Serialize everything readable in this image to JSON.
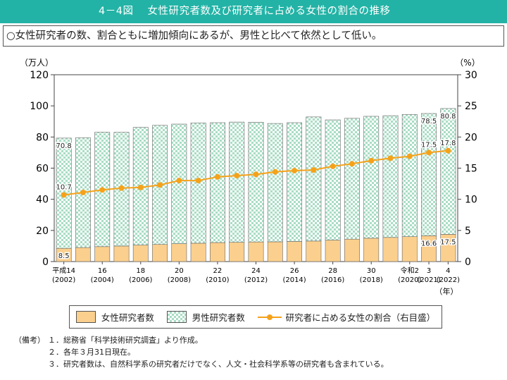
{
  "header": {
    "figure_number": "4－4図",
    "title": "女性研究者数及び研究者に占める女性の割合の推移"
  },
  "summary": "○女性研究者の数、割合ともに増加傾向にあるが、男性と比べて依然として低い。",
  "chart_data": {
    "type": "bar",
    "stacked": true,
    "left_axis_unit": "（万人）",
    "right_axis_unit": "（%）",
    "x_axis_unit": "（年）",
    "ylim": [
      0,
      120
    ],
    "y2lim": [
      0,
      30
    ],
    "left_ticks": [
      "0",
      "20",
      "40",
      "60",
      "80",
      "100",
      "120"
    ],
    "right_ticks": [
      "0",
      "5",
      "10",
      "15",
      "20",
      "25",
      "30"
    ],
    "tick_labels": [
      {
        "index": 0,
        "line1": "平成14",
        "line2": "(2002)"
      },
      {
        "index": 2,
        "line1": "16",
        "line2": "(2004)"
      },
      {
        "index": 4,
        "line1": "18",
        "line2": "(2006)"
      },
      {
        "index": 6,
        "line1": "20",
        "line2": "(2008)"
      },
      {
        "index": 8,
        "line1": "22",
        "line2": "(2010)"
      },
      {
        "index": 10,
        "line1": "24",
        "line2": "(2012)"
      },
      {
        "index": 12,
        "line1": "26",
        "line2": "(2014)"
      },
      {
        "index": 14,
        "line1": "28",
        "line2": "(2016)"
      },
      {
        "index": 16,
        "line1": "30",
        "line2": "(2018)"
      },
      {
        "index": 18,
        "line1": "令和2",
        "line2": "(2020)"
      },
      {
        "index": 19,
        "line1": "3",
        "line2": "(2021)"
      },
      {
        "index": 20,
        "line1": "4",
        "line2": "(2022)"
      }
    ],
    "categories": [
      "2002",
      "2003",
      "2004",
      "2005",
      "2006",
      "2007",
      "2008",
      "2009",
      "2010",
      "2011",
      "2012",
      "2013",
      "2014",
      "2015",
      "2016",
      "2017",
      "2018",
      "2019",
      "2020",
      "2021",
      "2022"
    ],
    "series": [
      {
        "name": "女性研究者数",
        "axis": "left",
        "values": [
          8.5,
          9.0,
          9.6,
          10.0,
          10.6,
          11.0,
          11.5,
          11.8,
          12.2,
          12.4,
          12.6,
          12.7,
          12.9,
          13.2,
          13.8,
          14.4,
          15.0,
          15.5,
          16.0,
          16.6,
          17.5
        ]
      },
      {
        "name": "男性研究者数",
        "axis": "left",
        "values": [
          70.8,
          70.5,
          73.5,
          73.0,
          75.6,
          76.5,
          76.8,
          77.2,
          77.0,
          77.2,
          76.9,
          76.0,
          76.3,
          79.7,
          77.2,
          77.6,
          78.3,
          78.2,
          78.5,
          78.5,
          80.8
        ]
      },
      {
        "name": "研究者に占める女性の割合（右目盛）",
        "axis": "right",
        "values": [
          10.7,
          11.1,
          11.5,
          11.8,
          11.9,
          12.3,
          13.0,
          13.0,
          13.6,
          13.8,
          14.0,
          14.4,
          14.6,
          14.7,
          15.3,
          15.7,
          16.2,
          16.6,
          16.9,
          17.5,
          17.8
        ]
      }
    ],
    "data_labels": [
      {
        "series": 0,
        "index": 0,
        "text": "8.5"
      },
      {
        "series": 1,
        "index": 0,
        "text": "70.8"
      },
      {
        "series": 2,
        "index": 0,
        "text": "10.7"
      },
      {
        "series": 0,
        "index": 19,
        "text": "16.6"
      },
      {
        "series": 1,
        "index": 19,
        "text": "78.5"
      },
      {
        "series": 2,
        "index": 19,
        "text": "17.5"
      },
      {
        "series": 0,
        "index": 20,
        "text": "17.5"
      },
      {
        "series": 1,
        "index": 20,
        "text": "80.8"
      },
      {
        "series": 2,
        "index": 20,
        "text": "17.8"
      }
    ],
    "colors": {
      "female": "#fbcf8d",
      "male_check": "#a9ddc5",
      "ratio": "#f5a21b",
      "accent": "#23b3a6"
    }
  },
  "legend": {
    "female": "女性研究者数",
    "male": "男性研究者数",
    "ratio": "研究者に占める女性の割合（右目盛）"
  },
  "notes": {
    "label": "（備考）",
    "items": [
      "１．総務省「科学技術研究調査」より作成。",
      "２．各年３月31日現在。",
      "３．研究者数は、自然科学系の研究者だけでなく、人文・社会科学系等の研究者も含まれている。"
    ]
  }
}
